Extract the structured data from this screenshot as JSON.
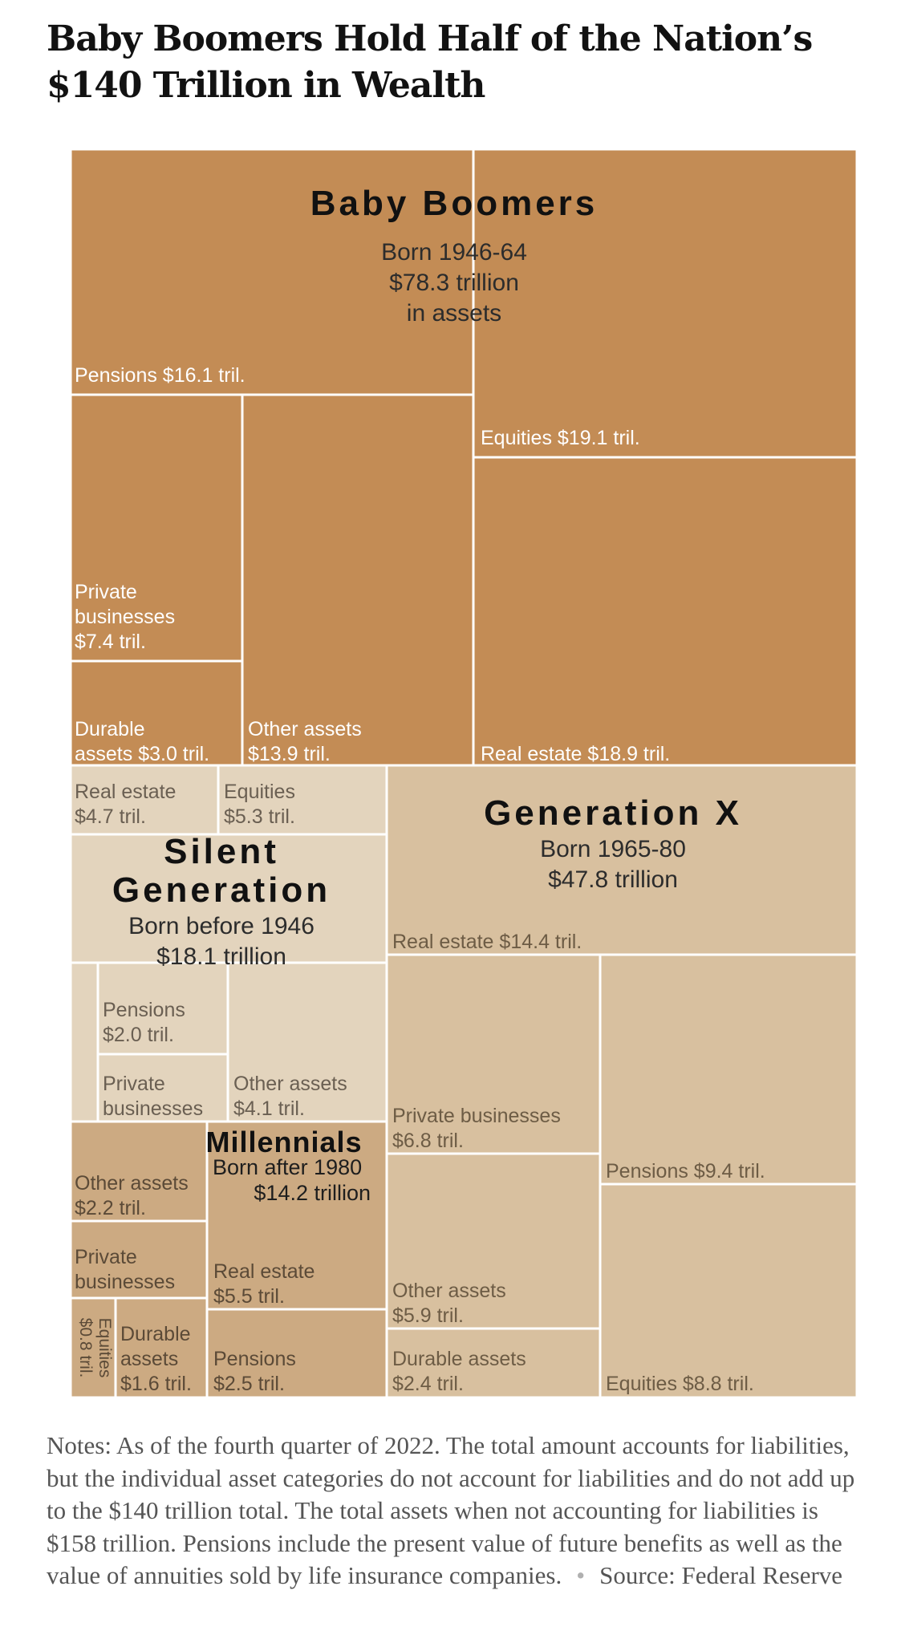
{
  "title": "Baby Boomers Hold Half of the Nation’s $140 Trillion in Wealth",
  "notes": "Notes: As of the fourth quarter of 2022. The total amount accounts for liabilities, but the individual asset categories do not account for liabilities and do not add up to the $140 trillion total. The total assets when not accounting for liabilities is $158 trillion. Pensions include the present value of future benefits as well as the value of annuities sold by life insurance companies.",
  "source": "Source: Federal Reserve",
  "chart_data": {
    "type": "treemap",
    "unit": "trillion dollars",
    "groups": [
      {
        "name": "Baby Boomers",
        "born": "Born 1946-64",
        "total_label": "$78.3 trillion",
        "total_suffix": "in assets",
        "total": 78.3,
        "color": "#c38c55",
        "items": [
          {
            "name": "Pensions",
            "value": 16.1,
            "label": "Pensions $16.1 tril."
          },
          {
            "name": "Private businesses",
            "value": 7.4,
            "label": "Private businesses $7.4 tril."
          },
          {
            "name": "Durable assets",
            "value": 3.0,
            "label": "Durable assets $3.0 tril."
          },
          {
            "name": "Other assets",
            "value": 13.9,
            "label": "Other assets $13.9 tril."
          },
          {
            "name": "Equities",
            "value": 19.1,
            "label": "Equities $19.1 tril."
          },
          {
            "name": "Real estate",
            "value": 18.9,
            "label": "Real estate $18.9 tril."
          }
        ]
      },
      {
        "name": "Silent Generation",
        "born": "Born before 1946",
        "total_label": "$18.1 trillion",
        "total": 18.1,
        "color": "#e3d4bd",
        "items": [
          {
            "name": "Real estate",
            "value": 4.7,
            "label": "Real estate $4.7 tril."
          },
          {
            "name": "Equities",
            "value": 5.3,
            "label": "Equities $5.3 tril."
          },
          {
            "name": "Pensions",
            "value": 2.0,
            "label": "Pensions $2.0 tril."
          },
          {
            "name": "Private businesses",
            "value": null,
            "label": "Private businesses"
          },
          {
            "name": "Other assets",
            "value": 4.1,
            "label": "Other assets $4.1 tril."
          }
        ]
      },
      {
        "name": "Generation X",
        "born": "Born 1965-80",
        "total_label": "$47.8 trillion",
        "total": 47.8,
        "color": "#d8c09f",
        "items": [
          {
            "name": "Real estate",
            "value": 14.4,
            "label": "Real estate $14.4 tril."
          },
          {
            "name": "Private businesses",
            "value": 6.8,
            "label": "Private businesses $6.8 tril."
          },
          {
            "name": "Other assets",
            "value": 5.9,
            "label": "Other assets $5.9 tril."
          },
          {
            "name": "Durable assets",
            "value": 2.4,
            "label": "Durable assets $2.4 tril."
          },
          {
            "name": "Pensions",
            "value": 9.4,
            "label": "Pensions $9.4 tril."
          },
          {
            "name": "Equities",
            "value": 8.8,
            "label": "Equities $8.8 tril."
          }
        ]
      },
      {
        "name": "Millennials",
        "born": "Born after 1980",
        "total_label": "$14.2 trillion",
        "total": 14.2,
        "color": "#ccaa82",
        "items": [
          {
            "name": "Other assets",
            "value": 2.2,
            "label": "Other assets $2.2 tril."
          },
          {
            "name": "Private businesses",
            "value": null,
            "label": "Private businesses"
          },
          {
            "name": "Equities",
            "value": 0.8,
            "label": "Equities $0.8 tril."
          },
          {
            "name": "Durable assets",
            "value": 1.6,
            "label": "Durable assets $1.6 tril."
          },
          {
            "name": "Real estate",
            "value": 5.5,
            "label": "Real estate $5.5 tril."
          },
          {
            "name": "Pensions",
            "value": 2.5,
            "label": "Pensions $2.5 tril."
          }
        ]
      }
    ]
  }
}
